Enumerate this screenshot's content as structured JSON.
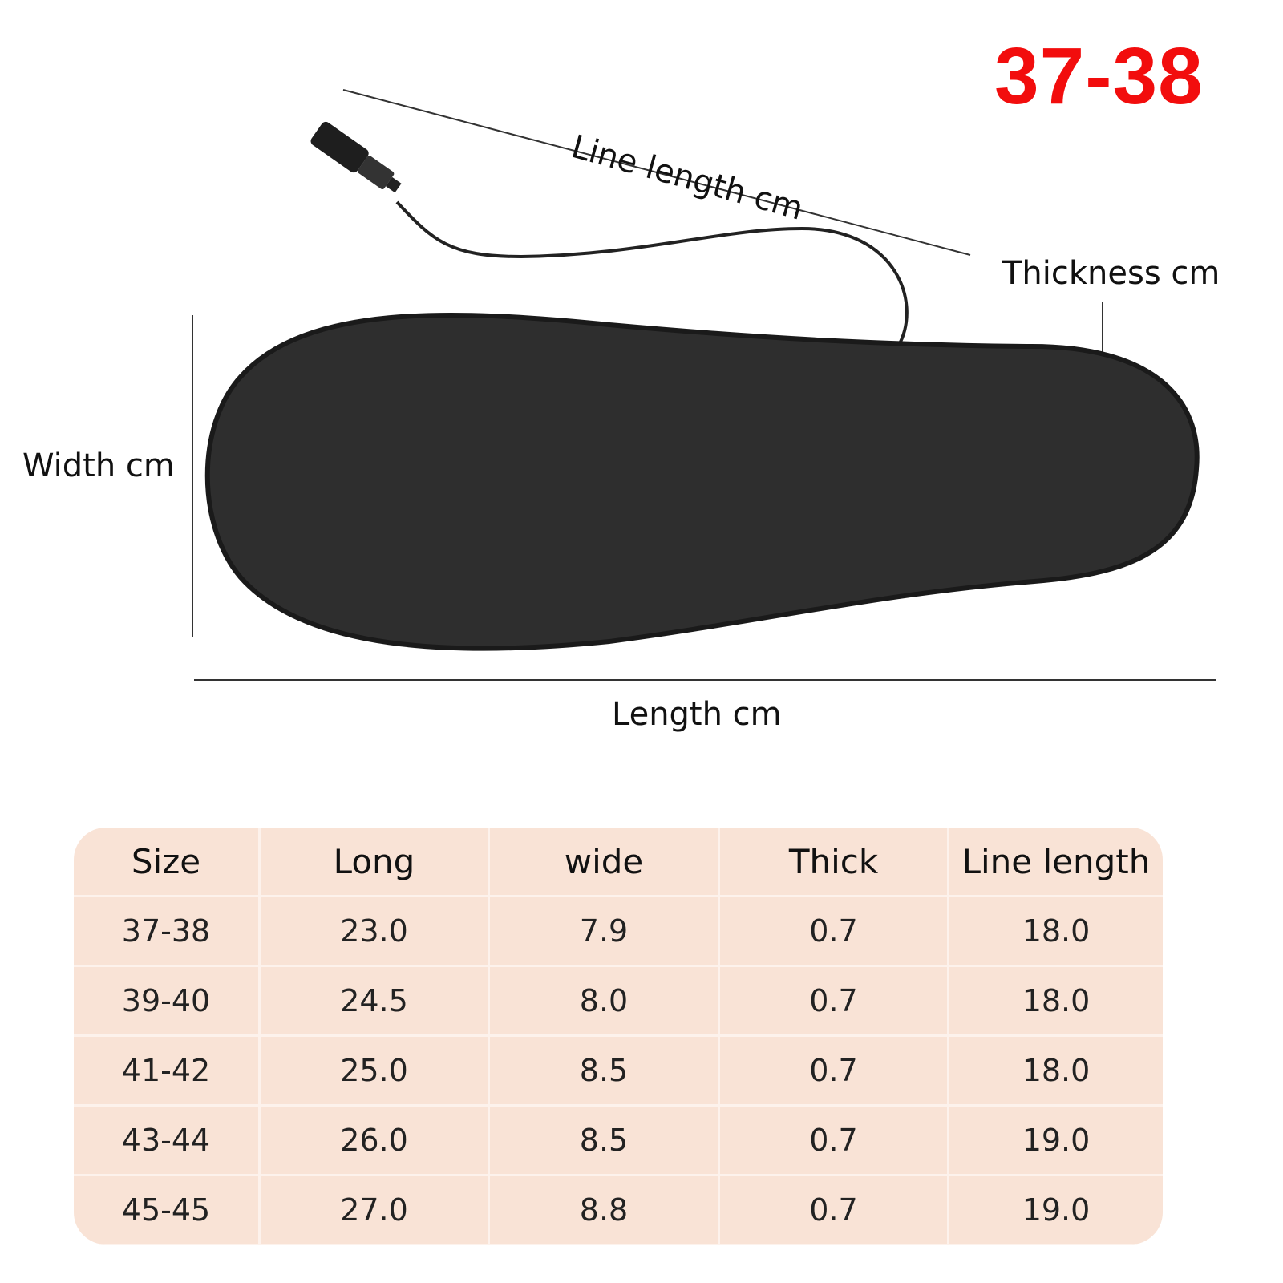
{
  "size_badge": "37-38",
  "labels": {
    "line_length": "Line length cm",
    "thickness": "Thickness cm",
    "width": "Width cm",
    "length": "Length cm"
  },
  "colors": {
    "badge": "#f20d0d",
    "table_bg": "#f9e3d6",
    "insole": "#2e2e2e"
  },
  "table": {
    "headers": [
      "Size",
      "Long",
      "wide",
      "Thick",
      "Line length"
    ],
    "rows": [
      [
        "37-38",
        "23.0",
        "7.9",
        "0.7",
        "18.0"
      ],
      [
        "39-40",
        "24.5",
        "8.0",
        "0.7",
        "18.0"
      ],
      [
        "41-42",
        "25.0",
        "8.5",
        "0.7",
        "18.0"
      ],
      [
        "43-44",
        "26.0",
        "8.5",
        "0.7",
        "19.0"
      ],
      [
        "45-45",
        "27.0",
        "8.8",
        "0.7",
        "19.0"
      ]
    ]
  }
}
